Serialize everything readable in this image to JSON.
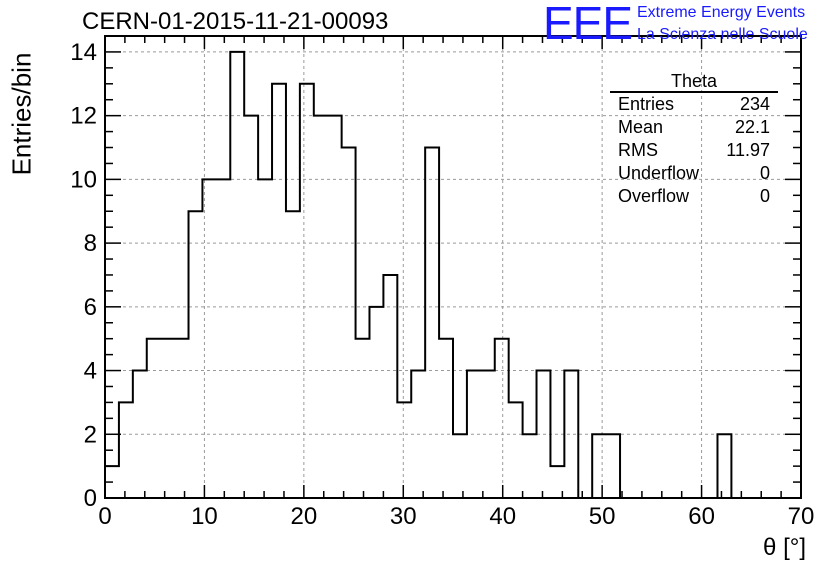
{
  "title": "CERN-01-2015-11-21-00093",
  "logo": {
    "mark": "EEE",
    "line1": "Extreme Energy Events",
    "line2": "La Scienza nelle Scuole"
  },
  "stats": {
    "title": "Theta",
    "rows": [
      {
        "label": "Entries",
        "value": "234"
      },
      {
        "label": "Mean",
        "value": "22.1"
      },
      {
        "label": "RMS",
        "value": "11.97"
      },
      {
        "label": "Underflow",
        "value": "0"
      },
      {
        "label": "Overflow",
        "value": "0"
      }
    ]
  },
  "colors": {
    "line": "#000000",
    "grid": "#9a9a9a",
    "logo": "#1a1aff"
  },
  "chart_data": {
    "type": "histogram",
    "xlabel": "θ [°]",
    "ylabel": "Entries/bin",
    "xlim": [
      0,
      70
    ],
    "ylim": [
      0,
      14.5
    ],
    "xticks": [
      0,
      10,
      20,
      30,
      40,
      50,
      60,
      70
    ],
    "yticks": [
      0,
      2,
      4,
      6,
      8,
      10,
      12,
      14
    ],
    "grid": true,
    "bin_width": 1.4,
    "values": [
      1,
      3,
      4,
      5,
      5,
      5,
      9,
      10,
      10,
      14,
      12,
      10,
      13,
      9,
      13,
      12,
      12,
      11,
      5,
      6,
      7,
      3,
      4,
      11,
      5,
      2,
      4,
      4,
      5,
      3,
      2,
      4,
      1,
      4,
      0,
      2,
      2,
      0,
      0,
      0,
      0,
      0,
      0,
      0,
      2,
      0,
      0,
      0,
      0,
      0
    ]
  }
}
